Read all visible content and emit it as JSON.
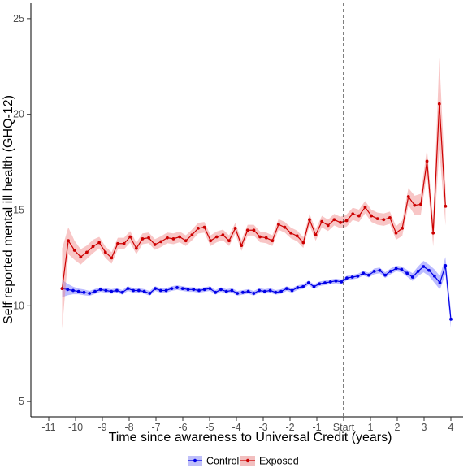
{
  "chart_data": {
    "type": "line",
    "xlabel": "Time since awareness to Universal Credit (years)",
    "ylabel": "Self reported mental ill health (GHQ-12)",
    "x_ticks": [
      {
        "value": -11,
        "label": "-11"
      },
      {
        "value": -10,
        "label": "-10"
      },
      {
        "value": -9,
        "label": "-9"
      },
      {
        "value": -8,
        "label": "-8"
      },
      {
        "value": -7,
        "label": "-7"
      },
      {
        "value": -6,
        "label": "-6"
      },
      {
        "value": -5,
        "label": "-5"
      },
      {
        "value": -4,
        "label": "-4"
      },
      {
        "value": -3,
        "label": "-3"
      },
      {
        "value": -2,
        "label": "-2"
      },
      {
        "value": -1,
        "label": "-1"
      },
      {
        "value": 0,
        "label": "Start"
      },
      {
        "value": 1,
        "label": "1"
      },
      {
        "value": 2,
        "label": "2"
      },
      {
        "value": 3,
        "label": "3"
      },
      {
        "value": 4,
        "label": "4"
      }
    ],
    "y_ticks": [
      5,
      10,
      15,
      20,
      25
    ],
    "xlim": [
      -11.6,
      4.3
    ],
    "ylim": [
      4.2,
      25.8
    ],
    "vline": {
      "x": 0,
      "style": "dashed"
    },
    "grid": false,
    "legend_position": "bottom",
    "series": [
      {
        "name": "Control",
        "color": "#0000e6",
        "band_color": "#6b6bff",
        "points": [
          [
            -10.5,
            10.9,
            0.45
          ],
          [
            -10.33,
            10.85,
            0.3
          ],
          [
            -10.17,
            10.8,
            0.2
          ],
          [
            -10.0,
            10.75,
            0.15
          ],
          [
            -9.83,
            10.7,
            0.15
          ],
          [
            -9.67,
            10.65,
            0.13
          ],
          [
            -9.5,
            10.75,
            0.13
          ],
          [
            -9.33,
            10.85,
            0.12
          ],
          [
            -9.17,
            10.8,
            0.12
          ],
          [
            -9.0,
            10.75,
            0.12
          ],
          [
            -8.83,
            10.8,
            0.12
          ],
          [
            -8.67,
            10.7,
            0.12
          ],
          [
            -8.5,
            10.9,
            0.12
          ],
          [
            -8.33,
            10.8,
            0.12
          ],
          [
            -8.17,
            10.8,
            0.12
          ],
          [
            -8.0,
            10.75,
            0.12
          ],
          [
            -7.83,
            10.65,
            0.12
          ],
          [
            -7.67,
            10.9,
            0.12
          ],
          [
            -7.5,
            10.8,
            0.12
          ],
          [
            -7.33,
            10.8,
            0.12
          ],
          [
            -7.17,
            10.9,
            0.12
          ],
          [
            -7.0,
            10.95,
            0.12
          ],
          [
            -6.83,
            10.9,
            0.12
          ],
          [
            -6.67,
            10.85,
            0.12
          ],
          [
            -6.5,
            10.85,
            0.12
          ],
          [
            -6.33,
            10.8,
            0.12
          ],
          [
            -6.17,
            10.85,
            0.12
          ],
          [
            -6.0,
            10.9,
            0.12
          ],
          [
            -5.83,
            10.7,
            0.12
          ],
          [
            -5.67,
            10.85,
            0.12
          ],
          [
            -5.5,
            10.75,
            0.12
          ],
          [
            -5.33,
            10.8,
            0.12
          ],
          [
            -5.17,
            10.65,
            0.12
          ],
          [
            -5.0,
            10.7,
            0.12
          ],
          [
            -4.83,
            10.75,
            0.12
          ],
          [
            -4.67,
            10.65,
            0.12
          ],
          [
            -4.5,
            10.8,
            0.12
          ],
          [
            -4.33,
            10.75,
            0.12
          ],
          [
            -4.17,
            10.8,
            0.12
          ],
          [
            -4.0,
            10.7,
            0.12
          ],
          [
            -3.83,
            10.75,
            0.12
          ],
          [
            -3.67,
            10.9,
            0.12
          ],
          [
            -3.5,
            10.8,
            0.12
          ],
          [
            -3.33,
            10.95,
            0.12
          ],
          [
            -3.17,
            11.0,
            0.12
          ],
          [
            -3.0,
            11.2,
            0.12
          ],
          [
            -2.83,
            11.0,
            0.12
          ],
          [
            -2.67,
            11.15,
            0.12
          ],
          [
            -2.5,
            11.2,
            0.12
          ],
          [
            -2.33,
            11.25,
            0.12
          ],
          [
            -2.17,
            11.3,
            0.12
          ],
          [
            -2.0,
            11.25,
            0.12
          ],
          [
            -1.83,
            11.45,
            0.12
          ],
          [
            -1.67,
            11.5,
            0.12
          ],
          [
            -1.5,
            11.55,
            0.12
          ],
          [
            -1.33,
            11.7,
            0.12
          ],
          [
            -1.17,
            11.6,
            0.12
          ],
          [
            -1.0,
            11.8,
            0.15
          ],
          [
            -0.83,
            11.85,
            0.15
          ],
          [
            -0.67,
            11.6,
            0.15
          ],
          [
            -0.5,
            11.8,
            0.15
          ],
          [
            -0.33,
            11.95,
            0.15
          ],
          [
            -0.17,
            11.9,
            0.15
          ],
          [
            0.0,
            11.7,
            0.18
          ],
          [
            0.17,
            11.5,
            0.2
          ],
          [
            0.33,
            11.8,
            0.25
          ],
          [
            0.5,
            12.05,
            0.3
          ],
          [
            0.67,
            11.85,
            0.3
          ],
          [
            0.83,
            11.55,
            0.35
          ],
          [
            1.0,
            11.2,
            0.35
          ],
          [
            1.17,
            12.1,
            0.45
          ],
          [
            1.33,
            9.3,
            0.45
          ]
        ]
      },
      {
        "name": "Exposed",
        "color": "#cc0000",
        "band_color": "#f08080",
        "points": [
          [
            -10.5,
            10.9,
            2.1
          ],
          [
            -10.33,
            13.4,
            0.7
          ],
          [
            -10.17,
            12.9,
            0.5
          ],
          [
            -10.0,
            12.55,
            0.4
          ],
          [
            -9.83,
            12.8,
            0.35
          ],
          [
            -9.67,
            13.1,
            0.35
          ],
          [
            -9.5,
            13.3,
            0.3
          ],
          [
            -9.33,
            12.8,
            0.3
          ],
          [
            -9.17,
            12.5,
            0.3
          ],
          [
            -9.0,
            13.25,
            0.3
          ],
          [
            -8.83,
            13.25,
            0.3
          ],
          [
            -8.67,
            13.6,
            0.3
          ],
          [
            -8.5,
            13.0,
            0.3
          ],
          [
            -8.33,
            13.5,
            0.28
          ],
          [
            -8.17,
            13.55,
            0.28
          ],
          [
            -8.0,
            13.2,
            0.28
          ],
          [
            -7.83,
            13.35,
            0.28
          ],
          [
            -7.67,
            13.55,
            0.28
          ],
          [
            -7.5,
            13.5,
            0.28
          ],
          [
            -7.33,
            13.6,
            0.28
          ],
          [
            -7.17,
            13.4,
            0.28
          ],
          [
            -7.0,
            13.7,
            0.28
          ],
          [
            -6.83,
            14.05,
            0.28
          ],
          [
            -6.67,
            14.1,
            0.28
          ],
          [
            -6.5,
            13.4,
            0.28
          ],
          [
            -6.33,
            13.6,
            0.28
          ],
          [
            -6.17,
            13.7,
            0.28
          ],
          [
            -6.0,
            13.4,
            0.28
          ],
          [
            -5.83,
            14.05,
            0.28
          ],
          [
            -5.67,
            13.15,
            0.28
          ],
          [
            -5.5,
            13.95,
            0.28
          ],
          [
            -5.33,
            13.95,
            0.28
          ],
          [
            -5.17,
            13.6,
            0.28
          ],
          [
            -5.0,
            13.55,
            0.28
          ],
          [
            -4.83,
            13.4,
            0.28
          ],
          [
            -4.67,
            14.25,
            0.28
          ],
          [
            -4.5,
            14.1,
            0.28
          ],
          [
            -4.33,
            13.8,
            0.28
          ],
          [
            -4.17,
            13.65,
            0.28
          ],
          [
            -4.0,
            13.3,
            0.28
          ],
          [
            -3.83,
            14.5,
            0.3
          ],
          [
            -3.67,
            13.7,
            0.3
          ],
          [
            -3.5,
            14.4,
            0.3
          ],
          [
            -3.33,
            14.2,
            0.3
          ],
          [
            -3.17,
            14.5,
            0.3
          ],
          [
            -3.0,
            14.35,
            0.3
          ],
          [
            -2.83,
            14.45,
            0.32
          ],
          [
            -2.67,
            14.8,
            0.32
          ],
          [
            -2.5,
            14.7,
            0.32
          ],
          [
            -2.33,
            15.15,
            0.32
          ],
          [
            -2.17,
            14.7,
            0.32
          ],
          [
            -2.0,
            14.55,
            0.32
          ],
          [
            -1.83,
            14.5,
            0.32
          ],
          [
            -1.67,
            14.6,
            0.32
          ],
          [
            -1.5,
            13.8,
            0.35
          ],
          [
            -1.33,
            14.05,
            0.4
          ],
          [
            -1.17,
            15.7,
            0.45
          ],
          [
            -1.0,
            15.25,
            0.5
          ],
          [
            -0.83,
            15.3,
            0.55
          ],
          [
            -0.67,
            17.55,
            0.65
          ],
          [
            -0.5,
            13.8,
            0.7
          ],
          [
            -0.33,
            20.55,
            2.4
          ],
          [
            -0.17,
            15.2,
            1.0
          ]
        ]
      }
    ]
  },
  "legend": {
    "items": [
      {
        "label": "Control",
        "color": "#0000e6"
      },
      {
        "label": "Exposed",
        "color": "#cc0000"
      }
    ]
  }
}
